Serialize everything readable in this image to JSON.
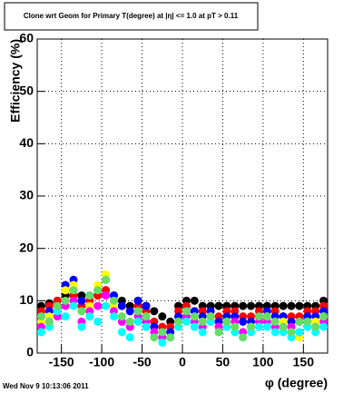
{
  "chart_data": {
    "type": "scatter",
    "title": "Clone wrt Geom for Primary T(degree) at |η| <= 1.0 at pT > 0.11",
    "x_label": "φ (degree)",
    "y_label": "Efficiency (%)",
    "timestamp": "Wed Nov  9 10:13:06 2011",
    "x": [
      -175,
      -165,
      -155,
      -145,
      -135,
      -125,
      -115,
      -105,
      -95,
      -85,
      -75,
      -65,
      -55,
      -45,
      -35,
      -25,
      -15,
      -5,
      5,
      15,
      25,
      35,
      45,
      55,
      65,
      75,
      85,
      95,
      105,
      115,
      125,
      135,
      145,
      155,
      165,
      175
    ],
    "series": [
      {
        "color": "#000000",
        "values": [
          9,
          9.5,
          10,
          11,
          12,
          11,
          10,
          11,
          12,
          11,
          10,
          9,
          10,
          9,
          8,
          7,
          6,
          9,
          10,
          10,
          9,
          9,
          9,
          9,
          9,
          9,
          9,
          9,
          9,
          9,
          9,
          9,
          9,
          9,
          9,
          10
        ]
      },
      {
        "color": "#ff0000",
        "values": [
          8,
          9,
          10,
          12,
          11,
          9,
          10,
          11,
          12,
          10,
          9,
          8,
          9,
          8,
          6,
          5,
          5,
          8,
          9,
          8,
          8,
          8,
          7,
          8,
          8,
          7,
          7,
          8,
          8,
          8,
          7,
          7,
          7,
          8,
          8,
          9
        ]
      },
      {
        "color": "#0000ff",
        "values": [
          7,
          8,
          9,
          13,
          14,
          10,
          11,
          12,
          14,
          11,
          9,
          8,
          10,
          9,
          5,
          4,
          4,
          7,
          8,
          8,
          7,
          8,
          6,
          7,
          7,
          6,
          6,
          7,
          8,
          7,
          7,
          6,
          6,
          7,
          7,
          8
        ]
      },
      {
        "color": "#ffff00",
        "values": [
          6,
          7,
          8,
          12,
          13,
          8,
          9,
          13,
          15,
          9,
          7,
          6,
          8,
          7,
          4,
          3,
          3,
          6,
          7,
          6,
          6,
          7,
          5,
          6,
          5,
          4,
          5,
          6,
          7,
          6,
          6,
          4,
          3,
          5,
          6,
          7
        ]
      },
      {
        "color": "#ff00ff",
        "values": [
          5,
          6,
          7,
          9,
          10,
          6,
          8,
          9,
          11,
          8,
          6,
          5,
          7,
          6,
          4,
          3,
          3,
          6,
          7,
          6,
          5,
          6,
          5,
          5,
          6,
          4,
          5,
          6,
          6,
          5,
          5,
          5,
          4,
          6,
          5,
          6
        ]
      },
      {
        "color": "#00ffff",
        "values": [
          4,
          5,
          8,
          7,
          9,
          5,
          7,
          6,
          9,
          7,
          4,
          3,
          6,
          5,
          3,
          2,
          3,
          5,
          6,
          5,
          4,
          6,
          4,
          5,
          4,
          3,
          4,
          5,
          5,
          4,
          4,
          3,
          4,
          5,
          4,
          5
        ]
      },
      {
        "color": "#66dd66",
        "values": [
          7,
          6,
          9,
          10,
          12,
          8,
          11,
          12,
          14,
          10,
          7,
          6,
          8,
          7,
          3,
          4,
          3,
          6,
          8,
          7,
          6,
          7,
          4,
          6,
          5,
          3,
          5,
          7,
          7,
          6,
          5,
          4,
          6,
          6,
          5,
          7
        ]
      }
    ],
    "xlim": [
      -180,
      180
    ],
    "ylim": [
      0,
      60
    ],
    "xticks": [
      -150,
      -100,
      -50,
      0,
      50,
      100,
      150
    ],
    "yticks": [
      0,
      10,
      20,
      30,
      40,
      50,
      60
    ],
    "grid": true
  }
}
